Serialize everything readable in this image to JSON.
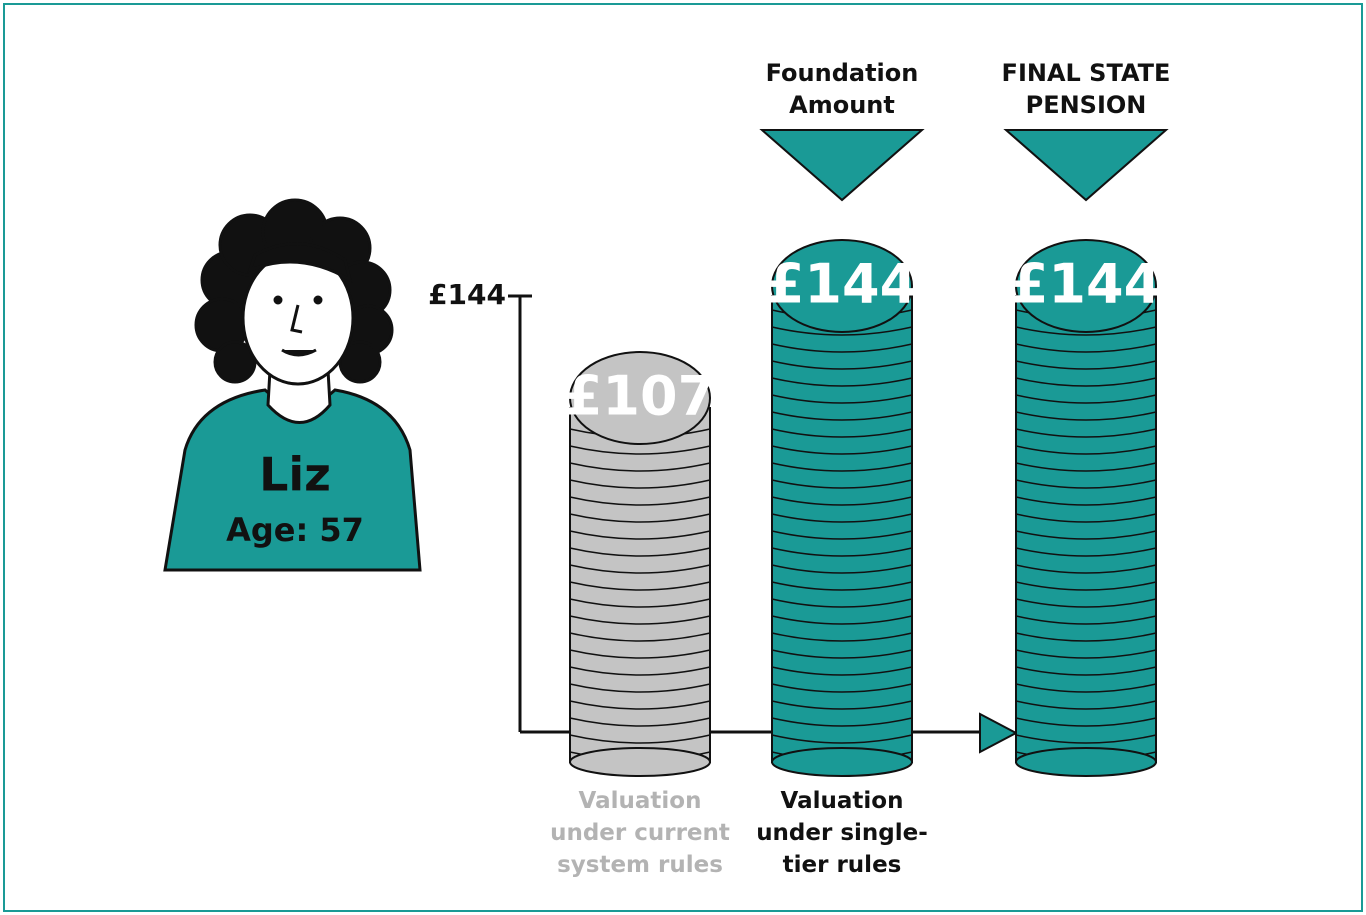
{
  "chart_data": {
    "type": "coin-stack",
    "categories": [
      "Valuation under current system rules",
      "Valuation under single-tier rules",
      null
    ],
    "category_colors": [
      "#b3b3b3",
      "#111111",
      "#111111"
    ],
    "headers": [
      null,
      "Foundation Amount",
      "FINAL STATE PENSION"
    ],
    "values": [
      107,
      144,
      144
    ],
    "value_labels": [
      "£107",
      "£144",
      "£144"
    ],
    "colors": [
      "#c4c4c4",
      "#1a9a96",
      "#1a9a96"
    ],
    "ylim": [
      0,
      144
    ],
    "yticks": [
      {
        "value": 144,
        "label": "£144"
      }
    ],
    "person": {
      "name": "Liz",
      "age": "Age: 57"
    }
  }
}
